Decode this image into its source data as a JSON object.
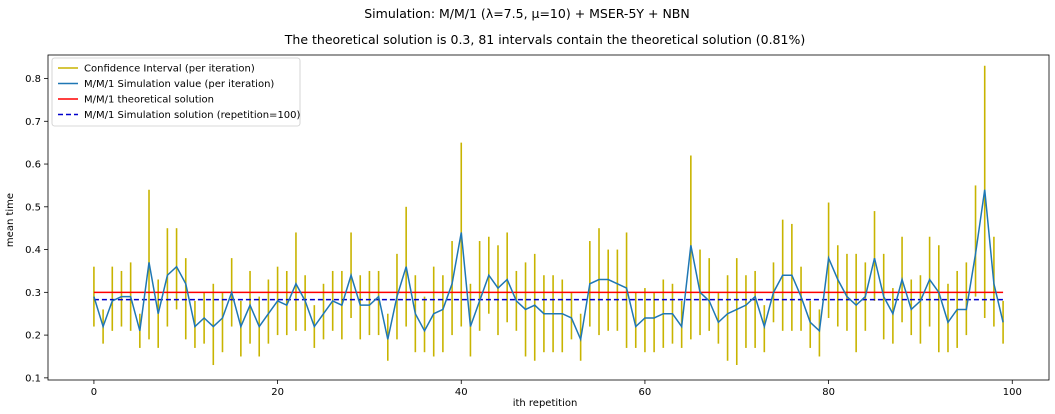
{
  "chart_data": {
    "type": "line",
    "suptitle": "Simulation: M/M/1 (λ=7.5, μ=10) + MSER-5Y + NBN",
    "title": "The theoretical solution is 0.3, 81 intervals contain the theoretical solution (0.81%)",
    "xlabel": "ith repetition",
    "ylabel": "mean time",
    "xlim": [
      -5,
      104
    ],
    "ylim": [
      0.095,
      0.855
    ],
    "xticks": [
      0,
      20,
      40,
      60,
      80,
      100
    ],
    "yticks": [
      0.1,
      0.2,
      0.3,
      0.4,
      0.5,
      0.6,
      0.7,
      0.8
    ],
    "legend_position": "upper-left",
    "grid": false,
    "x": [
      0,
      1,
      2,
      3,
      4,
      5,
      6,
      7,
      8,
      9,
      10,
      11,
      12,
      13,
      14,
      15,
      16,
      17,
      18,
      19,
      20,
      21,
      22,
      23,
      24,
      25,
      26,
      27,
      28,
      29,
      30,
      31,
      32,
      33,
      34,
      35,
      36,
      37,
      38,
      39,
      40,
      41,
      42,
      43,
      44,
      45,
      46,
      47,
      48,
      49,
      50,
      51,
      52,
      53,
      54,
      55,
      56,
      57,
      58,
      59,
      60,
      61,
      62,
      63,
      64,
      65,
      66,
      67,
      68,
      69,
      70,
      71,
      72,
      73,
      74,
      75,
      76,
      77,
      78,
      79,
      80,
      81,
      82,
      83,
      84,
      85,
      86,
      87,
      88,
      89,
      90,
      91,
      92,
      93,
      94,
      95,
      96,
      97,
      98,
      99
    ],
    "series": [
      {
        "name": "Confidence Interval (per iteration)",
        "kind": "errorbar",
        "color": "#c8b400",
        "lower": [
          0.22,
          0.18,
          0.21,
          0.22,
          0.21,
          0.17,
          0.19,
          0.17,
          0.22,
          0.26,
          0.19,
          0.17,
          0.18,
          0.13,
          0.16,
          0.22,
          0.15,
          0.18,
          0.15,
          0.18,
          0.2,
          0.2,
          0.21,
          0.21,
          0.17,
          0.19,
          0.21,
          0.19,
          0.24,
          0.19,
          0.2,
          0.2,
          0.14,
          0.19,
          0.22,
          0.16,
          0.16,
          0.15,
          0.16,
          0.2,
          0.22,
          0.15,
          0.21,
          0.25,
          0.2,
          0.23,
          0.21,
          0.15,
          0.14,
          0.16,
          0.16,
          0.16,
          0.19,
          0.14,
          0.22,
          0.2,
          0.21,
          0.21,
          0.17,
          0.17,
          0.16,
          0.16,
          0.17,
          0.18,
          0.17,
          0.19,
          0.2,
          0.21,
          0.18,
          0.14,
          0.13,
          0.17,
          0.17,
          0.16,
          0.23,
          0.21,
          0.21,
          0.21,
          0.17,
          0.15,
          0.24,
          0.22,
          0.21,
          0.16,
          0.21,
          0.28,
          0.19,
          0.18,
          0.23,
          0.2,
          0.18,
          0.22,
          0.16,
          0.16,
          0.17,
          0.2,
          0.29,
          0.24,
          0.22,
          0.18
        ],
        "upper": [
          0.36,
          0.26,
          0.36,
          0.35,
          0.37,
          0.25,
          0.54,
          0.33,
          0.45,
          0.45,
          0.38,
          0.28,
          0.3,
          0.32,
          0.3,
          0.38,
          0.28,
          0.35,
          0.29,
          0.33,
          0.36,
          0.35,
          0.44,
          0.34,
          0.27,
          0.32,
          0.35,
          0.35,
          0.44,
          0.34,
          0.35,
          0.35,
          0.25,
          0.39,
          0.5,
          0.34,
          0.29,
          0.36,
          0.34,
          0.42,
          0.65,
          0.32,
          0.42,
          0.43,
          0.41,
          0.44,
          0.35,
          0.37,
          0.39,
          0.34,
          0.34,
          0.33,
          0.3,
          0.25,
          0.42,
          0.45,
          0.4,
          0.4,
          0.44,
          0.3,
          0.31,
          0.3,
          0.33,
          0.32,
          0.28,
          0.62,
          0.4,
          0.38,
          0.3,
          0.34,
          0.38,
          0.34,
          0.35,
          0.27,
          0.37,
          0.47,
          0.46,
          0.36,
          0.28,
          0.26,
          0.51,
          0.41,
          0.39,
          0.39,
          0.37,
          0.49,
          0.39,
          0.31,
          0.43,
          0.33,
          0.34,
          0.43,
          0.41,
          0.32,
          0.35,
          0.37,
          0.55,
          0.83,
          0.43,
          0.28
        ]
      },
      {
        "name": "M/M/1 Simulation value (per iteration)",
        "kind": "line",
        "color": "#1f77b4",
        "values": [
          0.29,
          0.22,
          0.28,
          0.29,
          0.29,
          0.21,
          0.37,
          0.25,
          0.34,
          0.36,
          0.32,
          0.22,
          0.24,
          0.22,
          0.24,
          0.3,
          0.22,
          0.27,
          0.22,
          0.25,
          0.28,
          0.27,
          0.32,
          0.28,
          0.22,
          0.25,
          0.28,
          0.27,
          0.34,
          0.27,
          0.27,
          0.29,
          0.19,
          0.29,
          0.36,
          0.25,
          0.21,
          0.25,
          0.26,
          0.32,
          0.44,
          0.22,
          0.28,
          0.34,
          0.31,
          0.33,
          0.28,
          0.26,
          0.27,
          0.25,
          0.25,
          0.25,
          0.24,
          0.19,
          0.32,
          0.33,
          0.33,
          0.32,
          0.31,
          0.22,
          0.24,
          0.24,
          0.25,
          0.25,
          0.22,
          0.41,
          0.3,
          0.28,
          0.23,
          0.25,
          0.26,
          0.27,
          0.29,
          0.22,
          0.3,
          0.34,
          0.34,
          0.29,
          0.23,
          0.21,
          0.38,
          0.33,
          0.29,
          0.27,
          0.29,
          0.38,
          0.29,
          0.25,
          0.33,
          0.26,
          0.28,
          0.33,
          0.3,
          0.23,
          0.26,
          0.26,
          0.39,
          0.54,
          0.32,
          0.23
        ]
      },
      {
        "name": "M/M/1 theoretical solution",
        "kind": "hline",
        "color": "#ff0000",
        "value": 0.3
      },
      {
        "name": "M/M/1 Simulation solution (repetition=100)",
        "kind": "hline-dashed",
        "color": "#0000cc",
        "value": 0.283
      }
    ]
  }
}
